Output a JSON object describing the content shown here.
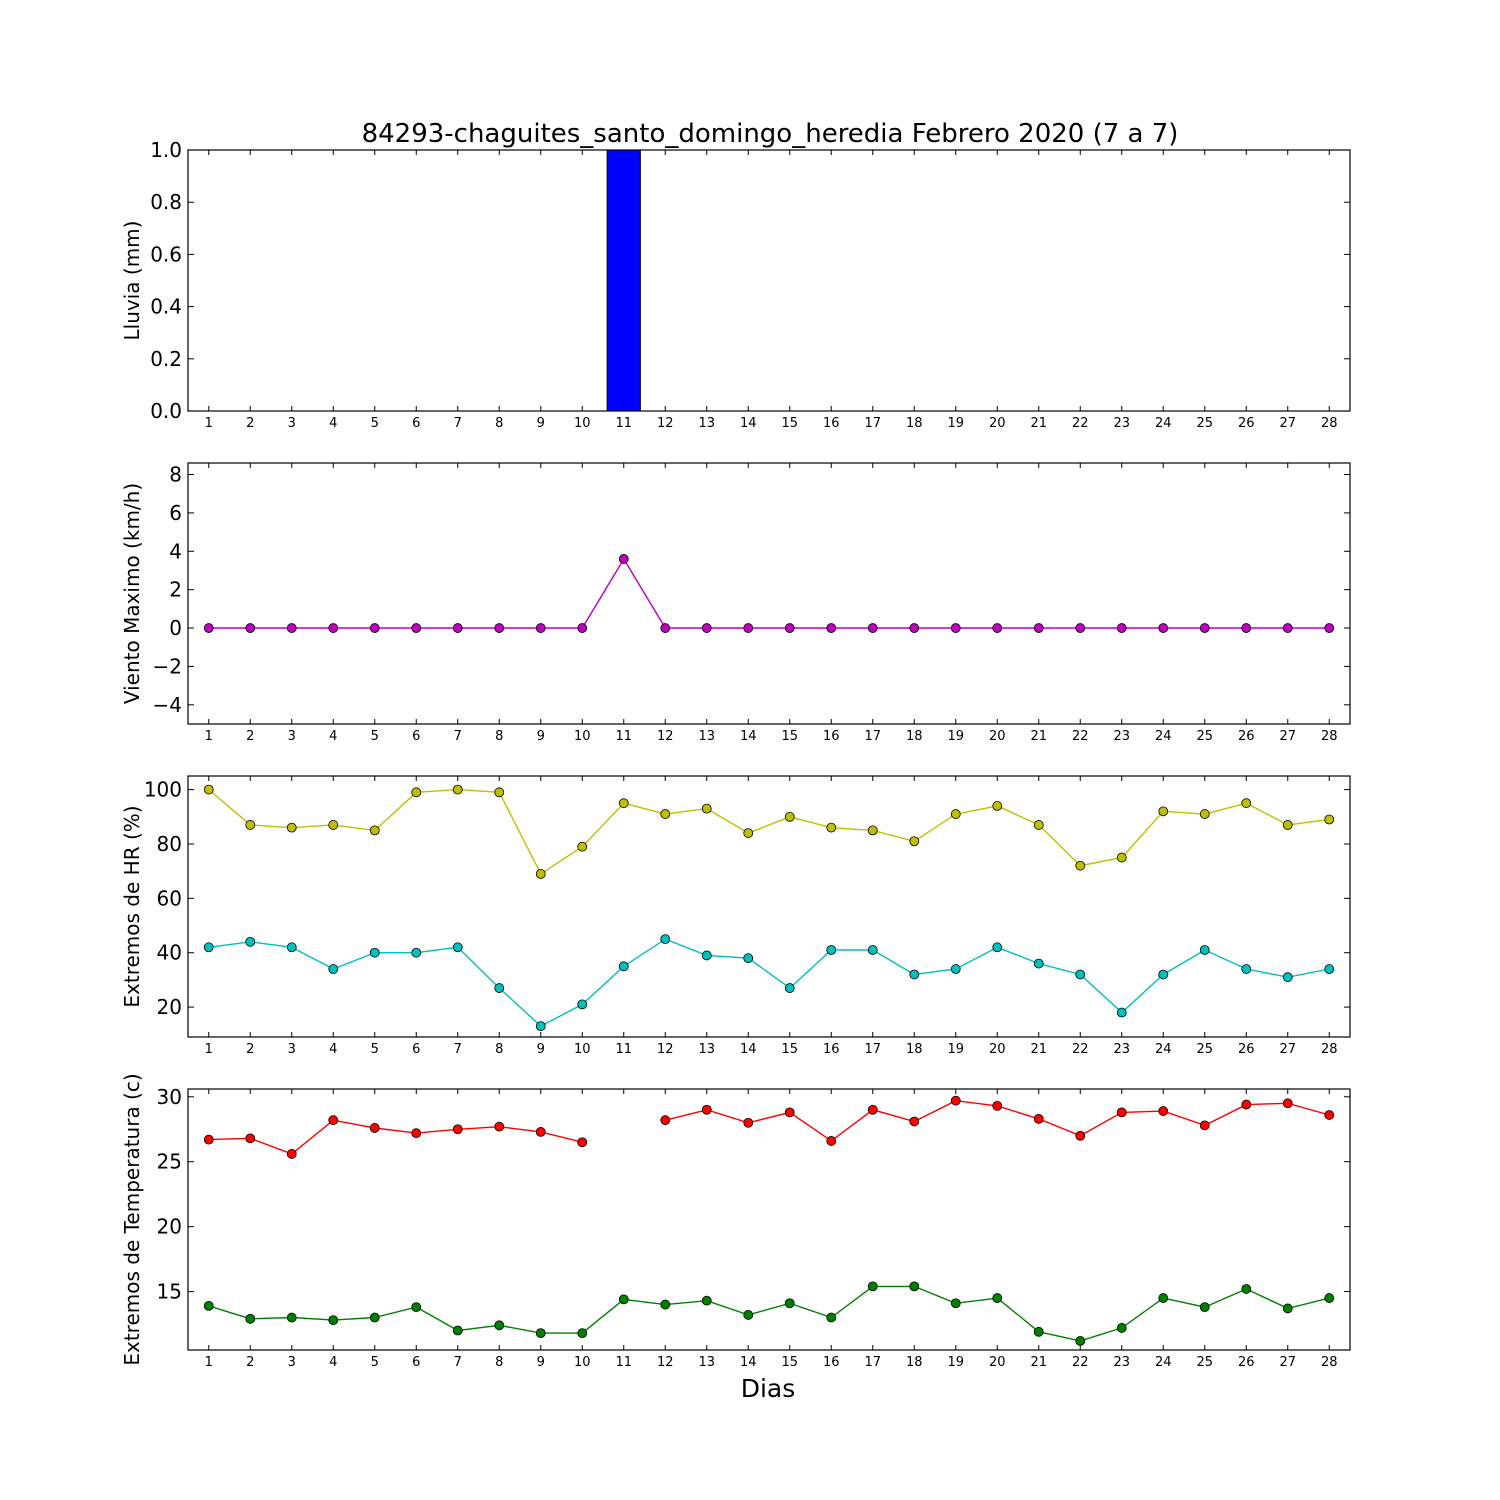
{
  "chart_data": {
    "type": "line",
    "title": "84293-chaguites_santo_domingo_heredia Febrero 2020  (7 a 7)",
    "xlabel": "Dias",
    "x": [
      1,
      2,
      3,
      4,
      5,
      6,
      7,
      8,
      9,
      10,
      11,
      12,
      13,
      14,
      15,
      16,
      17,
      18,
      19,
      20,
      21,
      22,
      23,
      24,
      25,
      26,
      27,
      28
    ],
    "panels": [
      {
        "type": "bar",
        "ylabel": "Lluvia (mm)",
        "ylim": [
          0,
          1.0
        ],
        "yticks": [
          0.0,
          0.2,
          0.4,
          0.6,
          0.8,
          1.0
        ],
        "ytick_labels": [
          "0.0",
          "0.2",
          "0.4",
          "0.6",
          "0.8",
          "1.0"
        ],
        "series": [
          {
            "color": "#0000ff",
            "values": [
              0,
              0,
              0,
              0,
              0,
              0,
              0,
              0,
              0,
              0,
              1.0,
              0,
              0,
              0,
              0,
              0,
              0,
              0,
              0,
              0,
              0,
              0,
              0,
              0,
              0,
              0,
              0,
              0
            ]
          }
        ]
      },
      {
        "type": "line",
        "ylabel": "Viento Maximo (km/h)",
        "ylim": [
          -5,
          8.6
        ],
        "yticks": [
          -4,
          -2,
          0,
          2,
          4,
          6,
          8
        ],
        "ytick_labels": [
          "−4",
          "−2",
          "0",
          "2",
          "4",
          "6",
          "8"
        ],
        "series": [
          {
            "color": "#bf00bf",
            "values": [
              0,
              0,
              0,
              0,
              0,
              0,
              0,
              0,
              0,
              0,
              3.6,
              0,
              0,
              0,
              0,
              0,
              0,
              0,
              0,
              0,
              0,
              0,
              0,
              0,
              0,
              0,
              0,
              0
            ]
          }
        ]
      },
      {
        "type": "line",
        "ylabel": "Extremos de HR (%)",
        "ylim": [
          9,
          105
        ],
        "yticks": [
          20,
          40,
          60,
          80,
          100
        ],
        "ytick_labels": [
          "20",
          "40",
          "60",
          "80",
          "100"
        ],
        "series": [
          {
            "color": "#bfbf00",
            "values": [
              100,
              87,
              86,
              87,
              85,
              99,
              100,
              99,
              69,
              79,
              95,
              91,
              93,
              84,
              90,
              86,
              85,
              81,
              91,
              94,
              87,
              72,
              75,
              92,
              91,
              95,
              87,
              89
            ]
          },
          {
            "color": "#00bfbf",
            "values": [
              42,
              44,
              42,
              34,
              40,
              40,
              42,
              27,
              13,
              21,
              35,
              45,
              39,
              38,
              27,
              41,
              41,
              32,
              34,
              42,
              36,
              32,
              18,
              32,
              41,
              34,
              31,
              34
            ]
          }
        ]
      },
      {
        "type": "line",
        "ylabel": "Extremos de Temperatura (c)",
        "ylim": [
          10.5,
          30.6
        ],
        "yticks": [
          15,
          20,
          25,
          30
        ],
        "ytick_labels": [
          "15",
          "20",
          "25",
          "30"
        ],
        "series": [
          {
            "color": "#ff0000",
            "values": [
              26.7,
              26.8,
              25.6,
              28.2,
              27.6,
              27.2,
              27.5,
              27.7,
              27.3,
              26.5,
              null,
              28.2,
              29.0,
              28.0,
              28.8,
              26.6,
              29.0,
              28.1,
              29.7,
              29.3,
              28.3,
              27.0,
              28.8,
              28.9,
              27.8,
              29.4,
              29.5,
              28.6
            ]
          },
          {
            "color": "#008000",
            "values": [
              13.9,
              12.9,
              13.0,
              12.8,
              13.0,
              13.8,
              12.0,
              12.4,
              11.8,
              11.8,
              14.4,
              14.0,
              14.3,
              13.2,
              14.1,
              13.0,
              15.4,
              15.4,
              14.1,
              14.5,
              11.9,
              11.2,
              12.2,
              14.5,
              13.8,
              15.2,
              13.7,
              14.5
            ]
          }
        ]
      }
    ]
  }
}
